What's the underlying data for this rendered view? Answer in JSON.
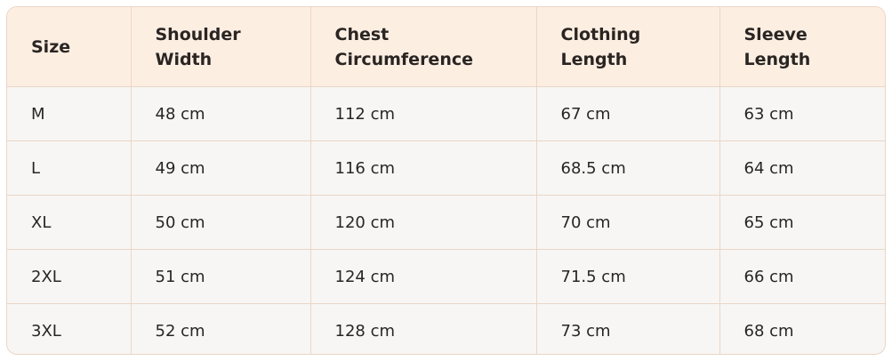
{
  "table": {
    "header": [
      "Size",
      "Shoulder\nWidth",
      "Chest\nCircumference",
      "Clothing\nLength",
      "Sleeve\nLength"
    ],
    "rows": [
      [
        "M",
        "48 cm",
        "112 cm",
        "67 cm",
        "63 cm"
      ],
      [
        "L",
        "49 cm",
        "116 cm",
        "68.5 cm",
        "64 cm"
      ],
      [
        "XL",
        "50 cm",
        "120 cm",
        "70 cm",
        "65 cm"
      ],
      [
        "2XL",
        "51 cm",
        "124 cm",
        "71.5 cm",
        "66 cm"
      ],
      [
        "3XL",
        "52 cm",
        "128 cm",
        "73 cm",
        "68 cm"
      ]
    ]
  }
}
